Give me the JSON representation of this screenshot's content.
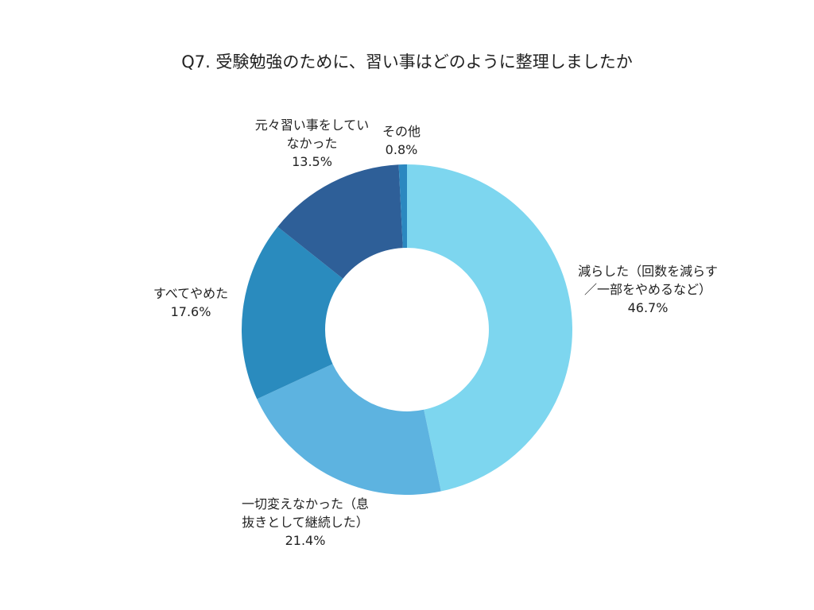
{
  "chart_data": {
    "type": "pie",
    "donut": true,
    "title": "Q7. 受験勉強のために、習い事はどのように整理しましたか",
    "slices": [
      {
        "label": "減らした（回数を減らす／一部をやめるなど）",
        "value": 46.7,
        "value_label": "46.7%",
        "color": "#7dd6ef"
      },
      {
        "label": "一切変えなかった（息抜きとして継続した）",
        "value": 21.4,
        "value_label": "21.4%",
        "color": "#5db3e0"
      },
      {
        "label": "すべてやめた",
        "value": 17.6,
        "value_label": "17.6%",
        "color": "#2a8bbe"
      },
      {
        "label": "元々習い事をしていなかった",
        "value": 13.5,
        "value_label": "13.5%",
        "color": "#2e5f98"
      },
      {
        "label": "その他",
        "value": 0.8,
        "value_label": "0.8%",
        "color": "#2b88c0"
      }
    ]
  }
}
